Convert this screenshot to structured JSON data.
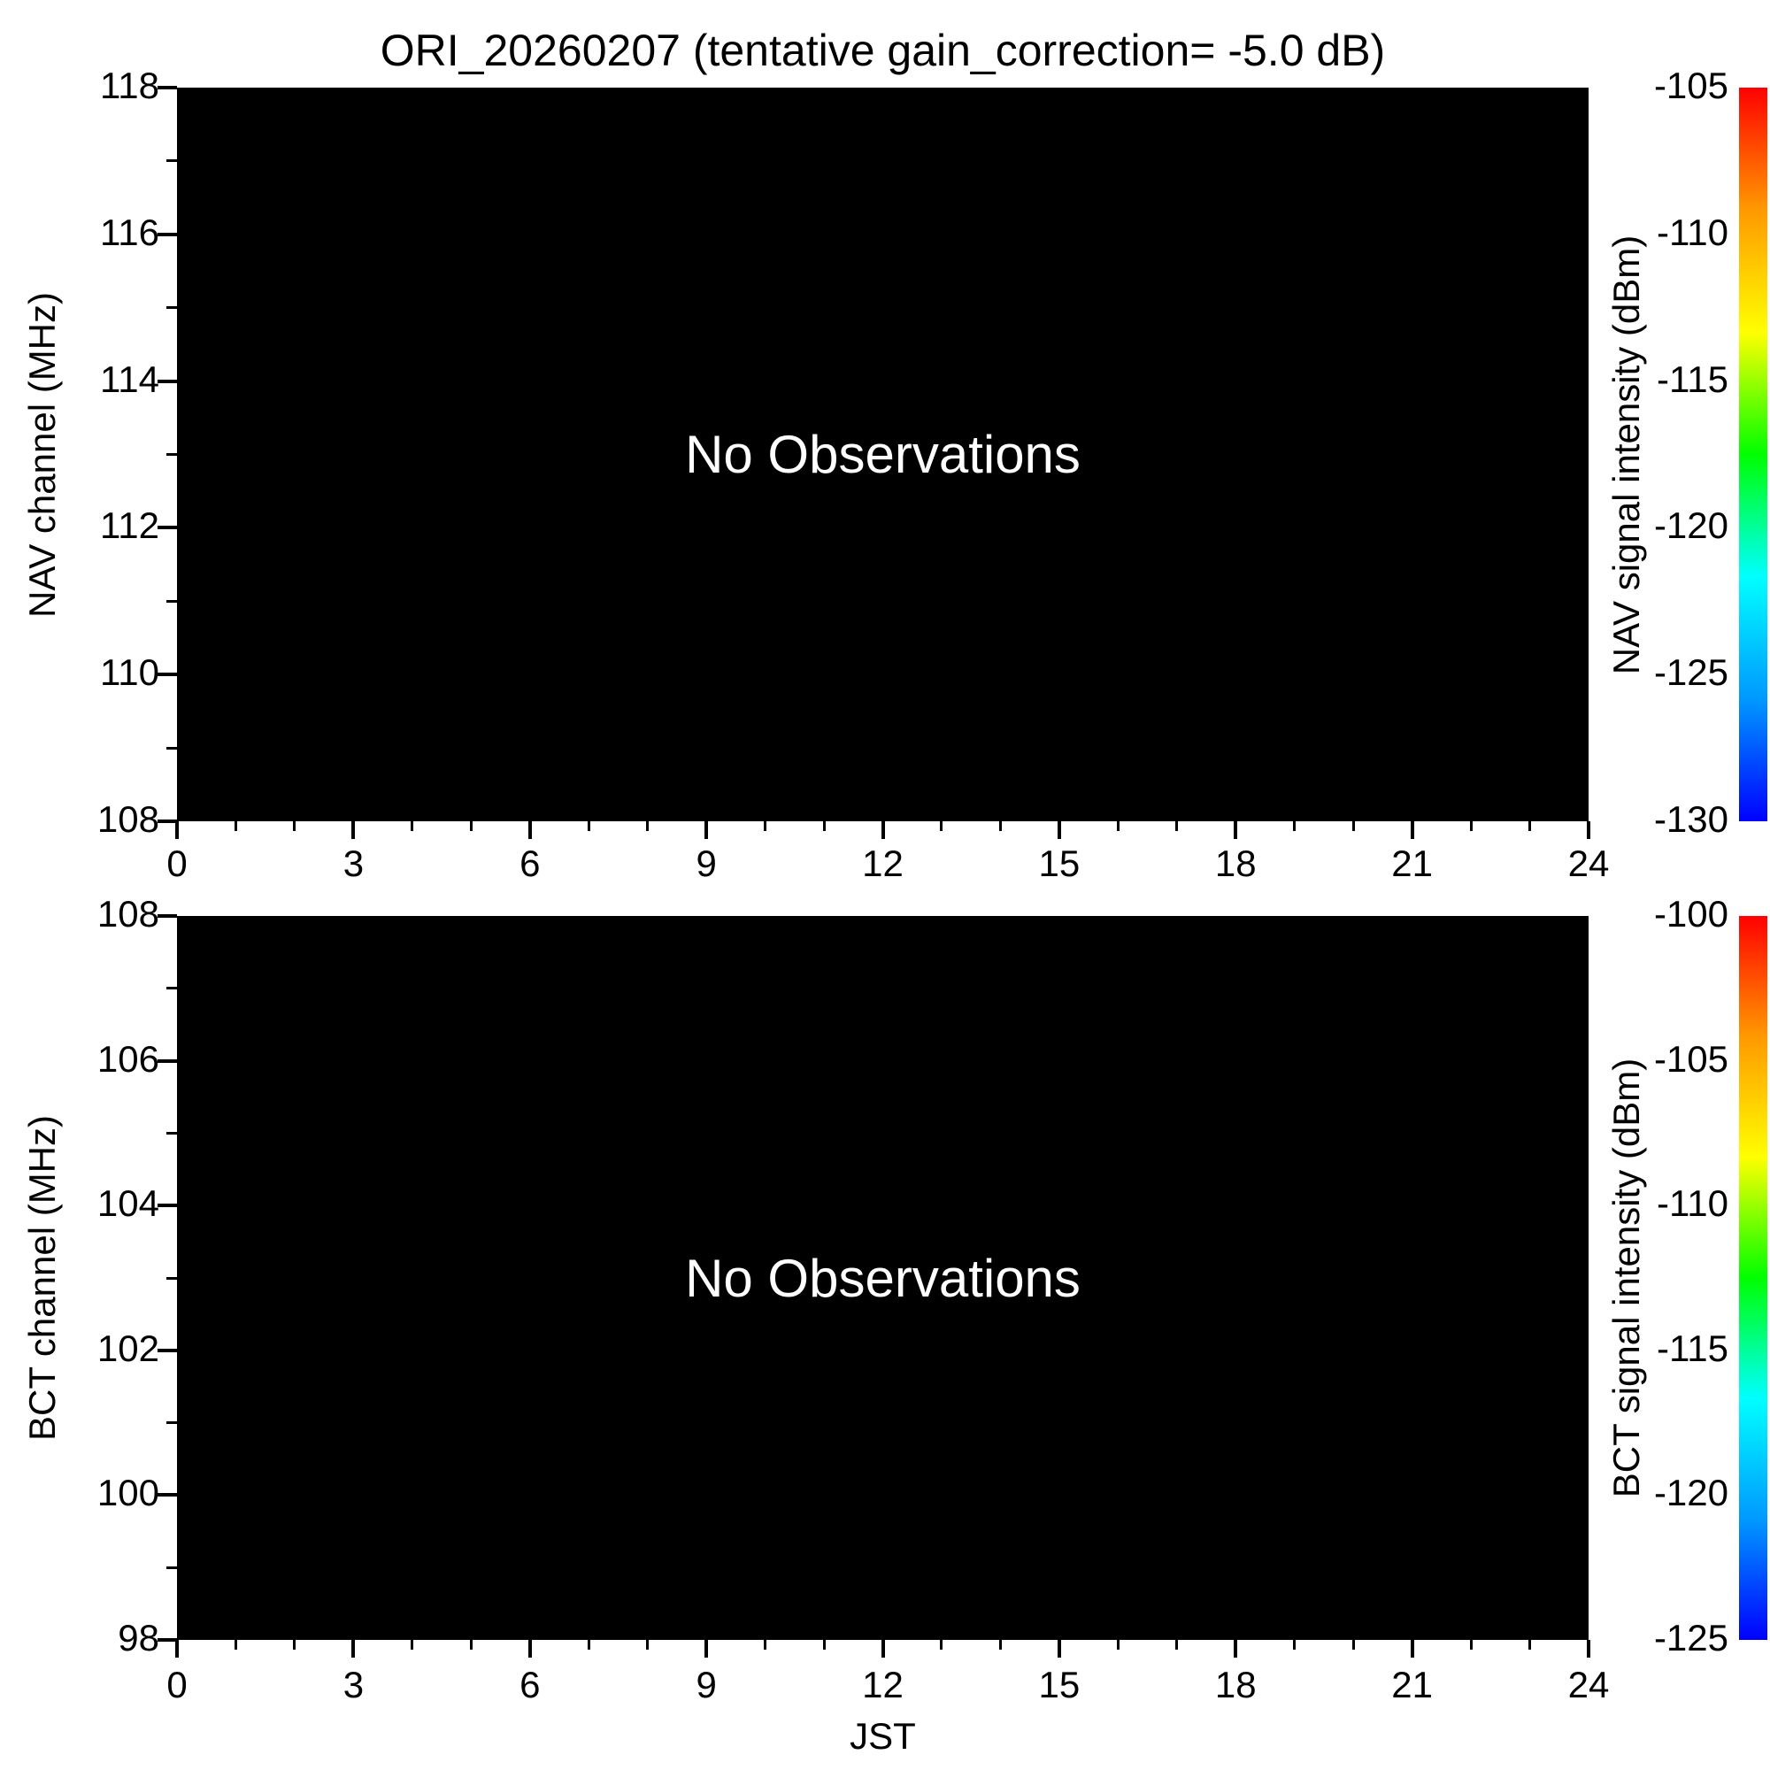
{
  "title": "ORI_20260207 (tentative gain_correction= -5.0 dB)",
  "panels": [
    {
      "id": "nav",
      "ylabel": "NAV channel (MHz)",
      "yticks": [
        "118",
        "116",
        "114",
        "112",
        "110",
        "108"
      ],
      "xticks": [
        "0",
        "3",
        "6",
        "9",
        "12",
        "15",
        "18",
        "21",
        "24"
      ],
      "xlabel": "",
      "annotation": "No Observations",
      "colorbar": {
        "label": "NAV signal intensity (dBm)",
        "ticks": [
          "-105",
          "-110",
          "-115",
          "-120",
          "-125",
          "-130"
        ]
      }
    },
    {
      "id": "bct",
      "ylabel": "BCT channel (MHz)",
      "yticks": [
        "108",
        "106",
        "104",
        "102",
        "100",
        "98"
      ],
      "xticks": [
        "0",
        "3",
        "6",
        "9",
        "12",
        "15",
        "18",
        "21",
        "24"
      ],
      "xlabel": "JST",
      "annotation": "No Observations",
      "colorbar": {
        "label": "BCT signal intensity (dBm)",
        "ticks": [
          "-100",
          "-105",
          "-110",
          "-115",
          "-120",
          "-125"
        ]
      }
    }
  ],
  "colors": {
    "plot_background": "#000000",
    "annotation_text": "#ffffff",
    "axis_text": "#000000",
    "colorbar_gradient": [
      "#ff0000",
      "#ff9900",
      "#ffff00",
      "#00ff00",
      "#00ffff",
      "#0099ff",
      "#0000ff"
    ]
  },
  "chart_data": [
    {
      "type": "heatmap",
      "title": "ORI_20260207 (tentative gain_correction= -5.0 dB)",
      "xlabel": "JST",
      "ylabel": "NAV channel (MHz)",
      "xlim": [
        0,
        24
      ],
      "xticks": [
        0,
        3,
        6,
        9,
        12,
        15,
        18,
        21,
        24
      ],
      "ylim": [
        108,
        118
      ],
      "yticks": [
        108,
        110,
        112,
        114,
        116,
        118
      ],
      "colorbar_label": "NAV signal intensity (dBm)",
      "colorbar_lim": [
        -130,
        -105
      ],
      "colorbar_ticks": [
        -105,
        -110,
        -115,
        -120,
        -125,
        -130
      ],
      "values": [],
      "annotation": "No Observations"
    },
    {
      "type": "heatmap",
      "title": "",
      "xlabel": "JST",
      "ylabel": "BCT channel (MHz)",
      "xlim": [
        0,
        24
      ],
      "xticks": [
        0,
        3,
        6,
        9,
        12,
        15,
        18,
        21,
        24
      ],
      "ylim": [
        98,
        108
      ],
      "yticks": [
        98,
        100,
        102,
        104,
        106,
        108
      ],
      "colorbar_label": "BCT signal intensity (dBm)",
      "colorbar_lim": [
        -125,
        -100
      ],
      "colorbar_ticks": [
        -100,
        -105,
        -110,
        -115,
        -120,
        -125
      ],
      "values": [],
      "annotation": "No Observations"
    }
  ]
}
